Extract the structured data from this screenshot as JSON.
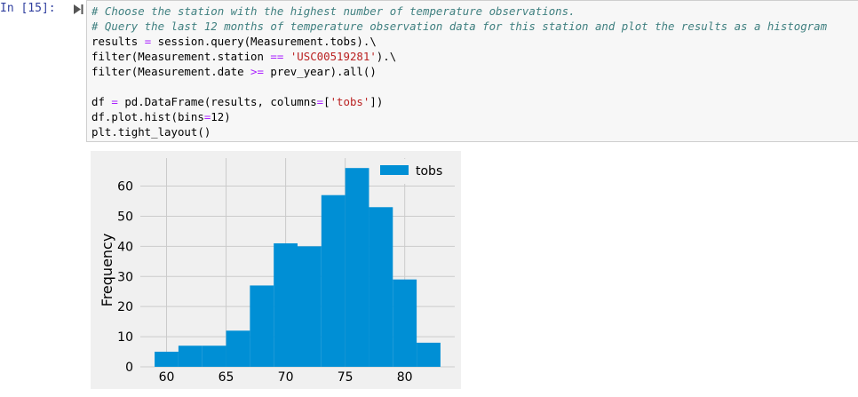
{
  "cell": {
    "prompt": "In [15]:",
    "run_icon": "run-cell-icon",
    "code_lines": [
      {
        "segs": [
          {
            "t": "# Choose the station with the highest number of temperature observations.",
            "c": "cm"
          }
        ]
      },
      {
        "segs": [
          {
            "t": "# Query the last 12 months of temperature observation data for this station and plot the results as a histogram",
            "c": "cm"
          }
        ]
      },
      {
        "segs": [
          {
            "t": "results ",
            "c": ""
          },
          {
            "t": "=",
            "c": "op"
          },
          {
            "t": " session.query(Measurement.tobs).\\",
            "c": ""
          }
        ]
      },
      {
        "segs": [
          {
            "t": "filter(Measurement.station ",
            "c": ""
          },
          {
            "t": "==",
            "c": "op"
          },
          {
            "t": " ",
            "c": ""
          },
          {
            "t": "'USC00519281'",
            "c": "str"
          },
          {
            "t": ").\\",
            "c": ""
          }
        ]
      },
      {
        "segs": [
          {
            "t": "filter(Measurement.date ",
            "c": ""
          },
          {
            "t": ">=",
            "c": "op"
          },
          {
            "t": " prev_year).all()",
            "c": ""
          }
        ]
      },
      {
        "segs": []
      },
      {
        "segs": [
          {
            "t": "df ",
            "c": ""
          },
          {
            "t": "=",
            "c": "op"
          },
          {
            "t": " pd.DataFrame(results, columns",
            "c": ""
          },
          {
            "t": "=",
            "c": "op"
          },
          {
            "t": "[",
            "c": ""
          },
          {
            "t": "'tobs'",
            "c": "str"
          },
          {
            "t": "])",
            "c": ""
          }
        ]
      },
      {
        "segs": [
          {
            "t": "df.plot.hist(bins",
            "c": ""
          },
          {
            "t": "=",
            "c": "op"
          },
          {
            "t": "12)",
            "c": ""
          }
        ]
      },
      {
        "segs": [
          {
            "t": "plt.tight_layout()",
            "c": ""
          }
        ]
      }
    ]
  },
  "chart_data": {
    "type": "bar",
    "style": "histogram",
    "bin_edges": [
      59,
      61,
      63,
      65,
      67,
      69,
      71,
      73,
      75,
      77,
      79,
      81,
      83
    ],
    "series": [
      {
        "name": "tobs",
        "values": [
          5,
          7,
          7,
          12,
          27,
          41,
          40,
          57,
          66,
          53,
          29,
          8
        ]
      }
    ],
    "title": "",
    "xlabel": "",
    "ylabel": "Frequency",
    "xticks": [
      60,
      65,
      70,
      75,
      80
    ],
    "yticks": [
      0,
      10,
      20,
      30,
      40,
      50,
      60
    ],
    "xlim": [
      57.8,
      84.2
    ],
    "ylim": [
      0,
      69.3
    ],
    "grid": true,
    "legend": "top-right",
    "colors": {
      "bar": "#008fd5",
      "background": "#f0f0f0",
      "grid": "#cbcbcb",
      "text": "#000000"
    }
  }
}
